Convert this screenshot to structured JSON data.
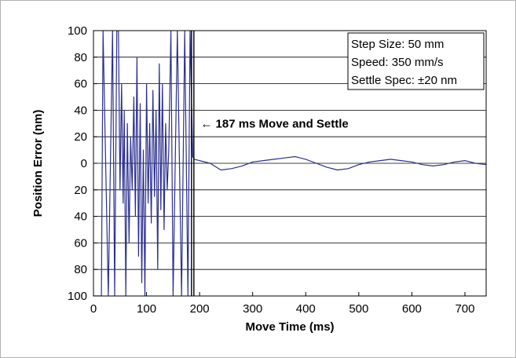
{
  "chart_data": {
    "type": "line",
    "title": "",
    "xlabel": "Move Time (ms)",
    "ylabel": "Position Error (nm)",
    "xlim": [
      0,
      740
    ],
    "ylim": [
      -100,
      100
    ],
    "x_ticks": [
      0,
      100,
      200,
      300,
      400,
      500,
      600,
      700
    ],
    "x_tick_labels": [
      "0",
      "100",
      "200",
      "300",
      "400",
      "500",
      "600",
      "700"
    ],
    "y_ticks": [
      100,
      80,
      60,
      40,
      20,
      0,
      -20,
      -40,
      -60,
      -80,
      -100
    ],
    "y_tick_labels": [
      "100",
      "80",
      "60",
      "40",
      "20",
      "0",
      "20",
      "40",
      "60",
      "80",
      "100"
    ],
    "grid": "horizontal",
    "legend_box": {
      "placement": "top-right",
      "lines": [
        "Step Size: 50 mm",
        "Speed: 350 mm/s",
        "Settle Spec: ±20 nm"
      ]
    },
    "annotation": {
      "text": "← 187 ms Move and Settle",
      "x": 187
    },
    "settle_marker_x": 187,
    "series": [
      {
        "color": "#2b2f8f",
        "x": [
          0,
          15,
          18,
          28,
          36,
          40,
          44,
          47,
          50,
          53,
          56,
          58,
          61,
          64,
          67,
          70,
          73,
          76,
          79,
          82,
          85,
          88,
          91,
          94,
          97,
          100,
          103,
          106,
          109,
          112,
          115,
          118,
          121,
          124,
          127,
          130,
          133,
          136,
          139,
          142,
          146,
          150,
          158,
          166,
          172,
          178,
          182,
          187,
          190,
          200,
          220,
          240,
          260,
          280,
          300,
          320,
          340,
          360,
          380,
          400,
          420,
          440,
          460,
          480,
          500,
          520,
          540,
          560,
          580,
          600,
          620,
          640,
          660,
          680,
          700,
          720,
          740
        ],
        "y": [
          -100,
          -100,
          100,
          -100,
          100,
          -100,
          100,
          100,
          -20,
          60,
          -30,
          40,
          -100,
          30,
          -60,
          20,
          -20,
          50,
          -40,
          80,
          -70,
          45,
          -90,
          10,
          -100,
          60,
          -30,
          30,
          -45,
          55,
          -25,
          40,
          -80,
          75,
          -35,
          60,
          -50,
          30,
          -20,
          10,
          100,
          -100,
          100,
          -100,
          100,
          -100,
          100,
          5,
          3,
          2,
          0,
          -5,
          -4,
          -2,
          1,
          2,
          3,
          4,
          5,
          3,
          0,
          -3,
          -5,
          -4,
          -1,
          1,
          2,
          3,
          2,
          1,
          -1,
          -2,
          -1,
          1,
          2,
          0,
          -1
        ]
      }
    ]
  }
}
